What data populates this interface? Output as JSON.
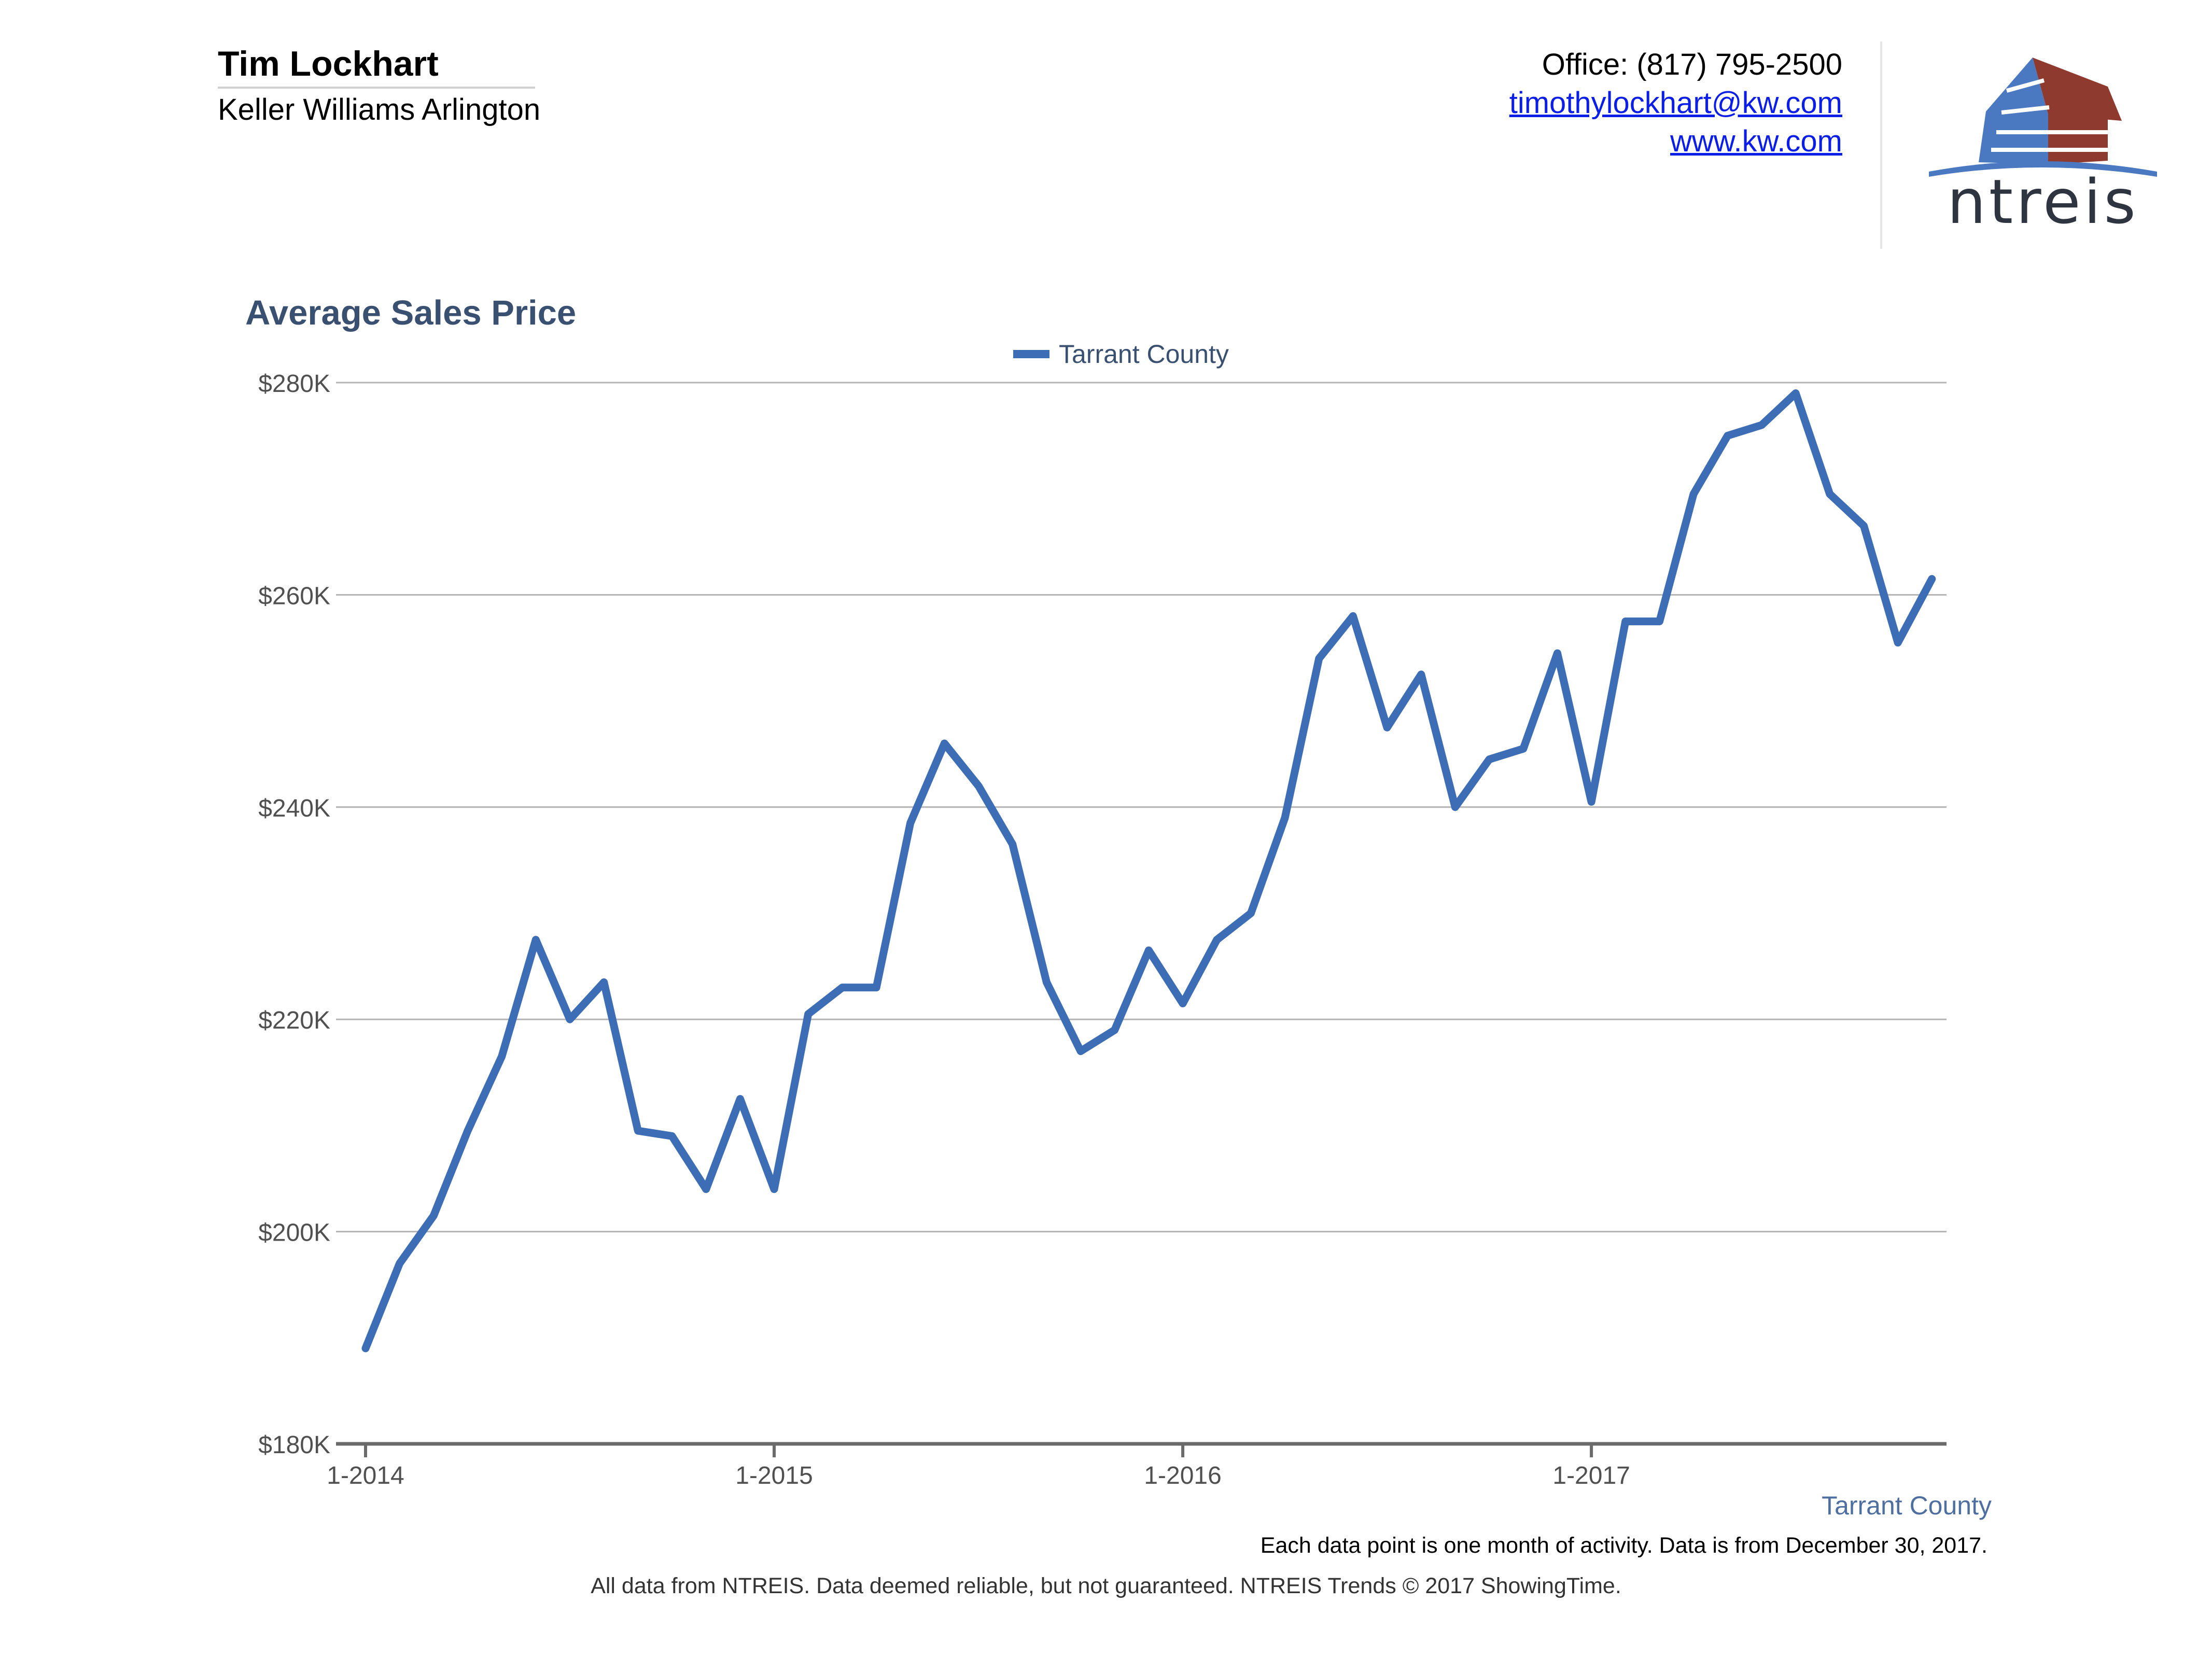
{
  "header": {
    "agent_name": "Tim Lockhart",
    "agent_company": "Keller Williams Arlington",
    "office_phone": "Office: (817) 795-2500",
    "email": "timothylockhart@kw.com",
    "website": "www.kw.com",
    "logo_text": "ntreis"
  },
  "colors": {
    "series": "#3d6db4",
    "title": "#3a5070",
    "logo_blue": "#4a79c2",
    "logo_red": "#8e3a2e",
    "logo_text": "#2e3440"
  },
  "chart_data": {
    "type": "line",
    "title": "Average Sales Price",
    "legend": [
      "Tarrant County"
    ],
    "legend_position": "top-center",
    "series_caption": "Tarrant County",
    "xlabel": "",
    "ylabel": "",
    "ylim": [
      180,
      280
    ],
    "y_unit": "$K",
    "y_ticks": [
      180,
      200,
      220,
      240,
      260,
      280
    ],
    "y_tick_labels": [
      "$180K",
      "$200K",
      "$220K",
      "$240K",
      "$260K",
      "$280K"
    ],
    "x_tick_indices": [
      0,
      12,
      24,
      36
    ],
    "x_tick_labels": [
      "1-2014",
      "1-2015",
      "1-2016",
      "1-2017"
    ],
    "grid": true,
    "series": [
      {
        "name": "Tarrant County",
        "values": [
          189,
          197,
          201.5,
          209.5,
          216.5,
          227.5,
          220,
          223.5,
          209.5,
          209,
          204,
          212.5,
          204,
          220.5,
          223,
          223,
          238.5,
          246,
          242,
          236.5,
          223.5,
          217,
          219,
          226.5,
          221.5,
          227.5,
          230,
          239,
          254,
          258,
          247.5,
          252.5,
          240,
          244.5,
          245.5,
          254.5,
          240.5,
          257.5,
          257.5,
          269.5,
          275,
          276,
          279,
          269.5,
          266.5,
          255.5,
          261.5
        ]
      }
    ]
  },
  "notes": {
    "data_point_note": "Each data point is one month of activity. Data is from December 30, 2017.",
    "footer": "All data from NTREIS. Data deemed reliable, but not guaranteed. NTREIS Trends © 2017 ShowingTime."
  }
}
